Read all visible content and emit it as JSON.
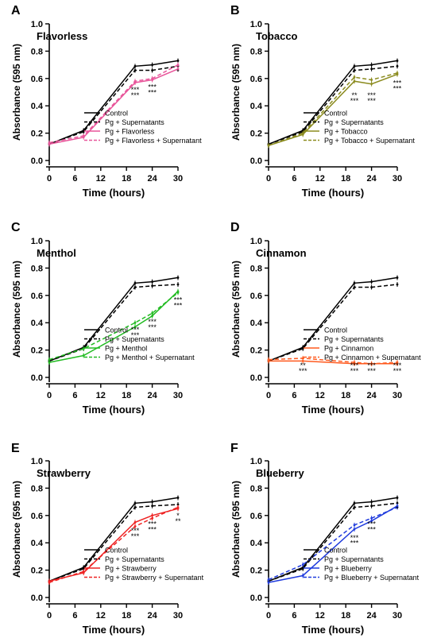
{
  "shared": {
    "xlabel": "Time (hours)",
    "ylabel": "Absorbance (595 nm)",
    "xticks": [
      0,
      6,
      12,
      18,
      24,
      30
    ],
    "yticks": [
      0.0,
      0.2,
      0.4,
      0.6,
      0.8,
      1.0
    ],
    "ytick_labels": [
      "0.0",
      "0.2",
      "0.4",
      "0.6",
      "0.8",
      "1.0"
    ],
    "xticks_labels": [
      "0",
      "6",
      "12",
      "18",
      "24",
      "30"
    ]
  },
  "chart_data": [
    {
      "type": "line",
      "panel_letter": "A",
      "title": "Flavorless",
      "accent": "#e8559a",
      "xlabel": "Time (hours)",
      "ylabel": "Absorbance (595 nm)",
      "xlim": [
        0,
        30
      ],
      "ylim": [
        0,
        1.0
      ],
      "x": [
        0,
        8,
        20,
        24,
        30
      ],
      "series": [
        {
          "name": "Control",
          "color": "#000000",
          "dashed": false,
          "values": [
            0.12,
            0.22,
            0.69,
            0.7,
            0.73
          ]
        },
        {
          "name": "Pg + Supernatants",
          "color": "#000000",
          "dashed": true,
          "values": [
            0.12,
            0.21,
            0.66,
            0.66,
            0.69
          ]
        },
        {
          "name": "Pg + Flavorless",
          "color": "#e8559a",
          "dashed": false,
          "values": [
            0.12,
            0.17,
            0.57,
            0.59,
            0.67
          ]
        },
        {
          "name": "Pg + Flavorless + Supernatant",
          "color": "#e8559a",
          "dashed": true,
          "values": [
            0.13,
            0.18,
            0.58,
            0.6,
            0.7
          ]
        }
      ],
      "annotations": [
        {
          "x": 20,
          "y": 0.5,
          "text": "***"
        },
        {
          "x": 20,
          "y": 0.46,
          "text": "***"
        },
        {
          "x": 24,
          "y": 0.52,
          "text": "***"
        },
        {
          "x": 24,
          "y": 0.48,
          "text": "***"
        },
        {
          "x": 30,
          "y": 0.63,
          "text": "*"
        }
      ]
    },
    {
      "type": "line",
      "panel_letter": "B",
      "title": "Tobacco",
      "accent": "#8b8b1f",
      "xlabel": "Time (hours)",
      "ylabel": "Absorbance (595 nm)",
      "xlim": [
        0,
        30
      ],
      "ylim": [
        0,
        1.0
      ],
      "x": [
        0,
        8,
        20,
        24,
        30
      ],
      "series": [
        {
          "name": "Control",
          "color": "#000000",
          "dashed": false,
          "values": [
            0.12,
            0.22,
            0.69,
            0.7,
            0.73
          ]
        },
        {
          "name": "Pg + Supernatants",
          "color": "#000000",
          "dashed": true,
          "values": [
            0.12,
            0.21,
            0.66,
            0.67,
            0.69
          ]
        },
        {
          "name": "Pg + Tobacco",
          "color": "#8b8b1f",
          "dashed": false,
          "values": [
            0.11,
            0.19,
            0.58,
            0.56,
            0.63
          ]
        },
        {
          "name": "Pg + Tobacco + Supernatant",
          "color": "#8b8b1f",
          "dashed": true,
          "values": [
            0.11,
            0.2,
            0.61,
            0.59,
            0.64
          ]
        }
      ],
      "annotations": [
        {
          "x": 20,
          "y": 0.46,
          "text": "**"
        },
        {
          "x": 20,
          "y": 0.42,
          "text": "***"
        },
        {
          "x": 24,
          "y": 0.46,
          "text": "***"
        },
        {
          "x": 24,
          "y": 0.42,
          "text": "***"
        },
        {
          "x": 30,
          "y": 0.55,
          "text": "***"
        },
        {
          "x": 30,
          "y": 0.51,
          "text": "***"
        }
      ]
    },
    {
      "type": "line",
      "panel_letter": "C",
      "title": "Menthol",
      "accent": "#22bb22",
      "xlabel": "Time (hours)",
      "ylabel": "Absorbance (595 nm)",
      "xlim": [
        0,
        30
      ],
      "ylim": [
        0,
        1.0
      ],
      "x": [
        0,
        8,
        20,
        24,
        30
      ],
      "series": [
        {
          "name": "Control",
          "color": "#000000",
          "dashed": false,
          "values": [
            0.12,
            0.22,
            0.69,
            0.7,
            0.73
          ]
        },
        {
          "name": "Pg + Supernatants",
          "color": "#000000",
          "dashed": true,
          "values": [
            0.12,
            0.21,
            0.66,
            0.67,
            0.68
          ]
        },
        {
          "name": "Pg + Menthol",
          "color": "#22bb22",
          "dashed": false,
          "values": [
            0.11,
            0.16,
            0.37,
            0.45,
            0.63
          ]
        },
        {
          "name": "Pg + Menthol + Supernatant",
          "color": "#22bb22",
          "dashed": true,
          "values": [
            0.13,
            0.21,
            0.4,
            0.47,
            0.62
          ]
        }
      ],
      "annotations": [
        {
          "x": 20,
          "y": 0.33,
          "text": "***"
        },
        {
          "x": 20,
          "y": 0.29,
          "text": "***"
        },
        {
          "x": 24,
          "y": 0.39,
          "text": "***"
        },
        {
          "x": 24,
          "y": 0.35,
          "text": "***"
        },
        {
          "x": 30,
          "y": 0.55,
          "text": "***"
        },
        {
          "x": 30,
          "y": 0.51,
          "text": "***"
        }
      ]
    },
    {
      "type": "line",
      "panel_letter": "D",
      "title": "Cinnamon",
      "accent": "#ff5a1f",
      "xlabel": "Time (hours)",
      "ylabel": "Absorbance (595 nm)",
      "xlim": [
        0,
        30
      ],
      "ylim": [
        0,
        1.0
      ],
      "x": [
        0,
        8,
        20,
        24,
        30
      ],
      "series": [
        {
          "name": "Control",
          "color": "#000000",
          "dashed": false,
          "values": [
            0.12,
            0.22,
            0.69,
            0.7,
            0.73
          ]
        },
        {
          "name": "Pg + Supernatants",
          "color": "#000000",
          "dashed": true,
          "values": [
            0.12,
            0.21,
            0.66,
            0.66,
            0.68
          ]
        },
        {
          "name": "Pg + Cinnamon",
          "color": "#ff5a1f",
          "dashed": false,
          "values": [
            0.12,
            0.12,
            0.1,
            0.1,
            0.1
          ]
        },
        {
          "name": "Pg + Cinnamon + Supernatant",
          "color": "#ff5a1f",
          "dashed": true,
          "values": [
            0.13,
            0.14,
            0.11,
            0.1,
            0.11
          ]
        }
      ],
      "annotations": [
        {
          "x": 8,
          "y": 0.07,
          "text": "**"
        },
        {
          "x": 8,
          "y": 0.03,
          "text": "***"
        },
        {
          "x": 20,
          "y": 0.07,
          "text": "***"
        },
        {
          "x": 20,
          "y": 0.03,
          "text": "***"
        },
        {
          "x": 24,
          "y": 0.07,
          "text": "***"
        },
        {
          "x": 24,
          "y": 0.03,
          "text": "***"
        },
        {
          "x": 30,
          "y": 0.07,
          "text": "***"
        },
        {
          "x": 30,
          "y": 0.03,
          "text": "***"
        }
      ]
    },
    {
      "type": "line",
      "panel_letter": "E",
      "title": "Strawberry",
      "accent": "#ee2222",
      "xlabel": "Time (hours)",
      "ylabel": "Absorbance (595 nm)",
      "xlim": [
        0,
        30
      ],
      "ylim": [
        0,
        1.0
      ],
      "x": [
        0,
        8,
        20,
        24,
        30
      ],
      "series": [
        {
          "name": "Control",
          "color": "#000000",
          "dashed": false,
          "values": [
            0.12,
            0.22,
            0.69,
            0.7,
            0.73
          ]
        },
        {
          "name": "Pg + Supernatants",
          "color": "#000000",
          "dashed": true,
          "values": [
            0.12,
            0.21,
            0.66,
            0.67,
            0.68
          ]
        },
        {
          "name": "Pg + Strawberry",
          "color": "#ee2222",
          "dashed": false,
          "values": [
            0.12,
            0.18,
            0.55,
            0.6,
            0.65
          ]
        },
        {
          "name": "Pg + Strawberry + Supernatant",
          "color": "#ee2222",
          "dashed": true,
          "values": [
            0.11,
            0.19,
            0.52,
            0.58,
            0.66
          ]
        }
      ],
      "annotations": [
        {
          "x": 20,
          "y": 0.47,
          "text": "***"
        },
        {
          "x": 20,
          "y": 0.43,
          "text": "***"
        },
        {
          "x": 24,
          "y": 0.52,
          "text": "***"
        },
        {
          "x": 24,
          "y": 0.48,
          "text": "***"
        },
        {
          "x": 30,
          "y": 0.58,
          "text": "*"
        },
        {
          "x": 30,
          "y": 0.54,
          "text": "**"
        }
      ]
    },
    {
      "type": "line",
      "panel_letter": "F",
      "title": "Blueberry",
      "accent": "#1f3bdd",
      "xlabel": "Time (hours)",
      "ylabel": "Absorbance (595 nm)",
      "xlim": [
        0,
        30
      ],
      "ylim": [
        0,
        1.0
      ],
      "x": [
        0,
        8,
        20,
        24,
        30
      ],
      "series": [
        {
          "name": "Control",
          "color": "#000000",
          "dashed": false,
          "values": [
            0.12,
            0.22,
            0.69,
            0.7,
            0.73
          ]
        },
        {
          "name": "Pg + Supernatants",
          "color": "#000000",
          "dashed": true,
          "values": [
            0.12,
            0.21,
            0.66,
            0.67,
            0.69
          ]
        },
        {
          "name": "Pg + Blueberry",
          "color": "#1f3bdd",
          "dashed": false,
          "values": [
            0.11,
            0.16,
            0.5,
            0.56,
            0.67
          ]
        },
        {
          "name": "Pg + Blueberry + Supernatant",
          "color": "#1f3bdd",
          "dashed": true,
          "values": [
            0.13,
            0.24,
            0.53,
            0.58,
            0.66
          ]
        }
      ],
      "annotations": [
        {
          "x": 20,
          "y": 0.42,
          "text": "***"
        },
        {
          "x": 20,
          "y": 0.38,
          "text": "***"
        },
        {
          "x": 24,
          "y": 0.52,
          "text": "***"
        },
        {
          "x": 24,
          "y": 0.48,
          "text": "***"
        },
        {
          "x": 30,
          "y": 0.63,
          "text": "*"
        }
      ]
    }
  ]
}
